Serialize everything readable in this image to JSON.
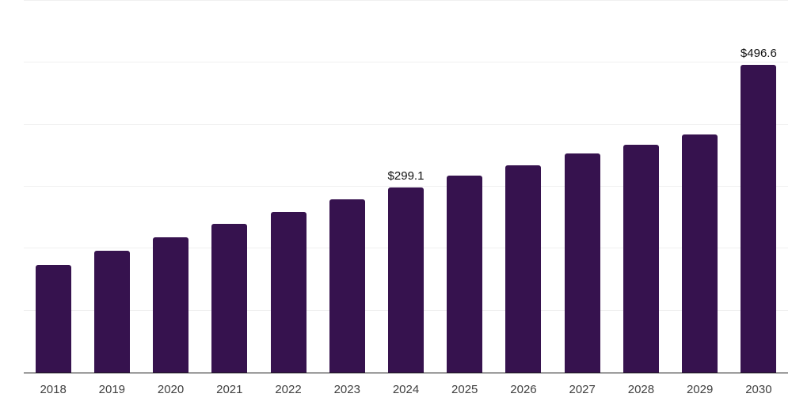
{
  "chart_data": {
    "type": "bar",
    "title": "",
    "xlabel": "",
    "ylabel": "",
    "categories": [
      "2018",
      "2019",
      "2020",
      "2021",
      "2022",
      "2023",
      "2024",
      "2025",
      "2026",
      "2027",
      "2028",
      "2029",
      "2030"
    ],
    "values": [
      173.2,
      196.1,
      218.3,
      239.8,
      259.4,
      279.6,
      299.1,
      317.4,
      334.4,
      353.2,
      368.3,
      384.6,
      496.6
    ],
    "data_labels": [
      {
        "category": "2024",
        "text": "$299.1"
      },
      {
        "category": "2030",
        "text": "$496.6"
      }
    ],
    "ylim": [
      0,
      600
    ],
    "gridline_step": 100,
    "grid": true,
    "y_tick_labels_visible": false,
    "legend_position": "none",
    "colors": {
      "bar": "#36124E",
      "gridline": "#f0f0f0",
      "axis": "#1a1a1a",
      "tick_label": "#404040",
      "data_label": "#111111",
      "background": "#ffffff"
    }
  }
}
